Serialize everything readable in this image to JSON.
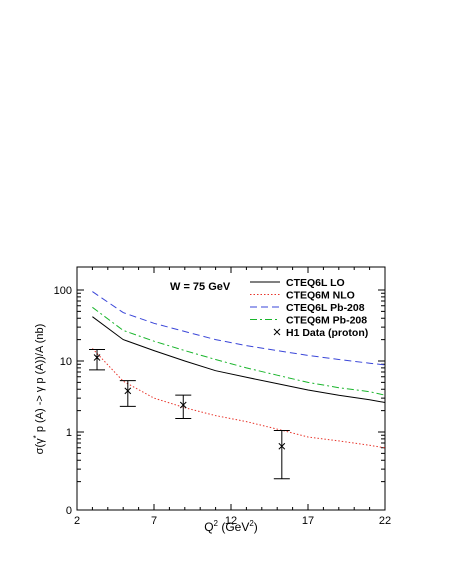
{
  "chart_data": {
    "type": "line",
    "annotation": "W = 75 GeV",
    "xlabel_main": "Q",
    "xlabel_sup": "2",
    "xlabel_unit_open": " (GeV",
    "xlabel_unit_sup": "2",
    "xlabel_unit_close": ")",
    "ylabel_prefix": "σ(γ",
    "ylabel_sup": "*",
    "ylabel_suffix": " p (A) -> γ p (A))/A (nb)",
    "xlim": [
      2,
      22
    ],
    "ylim": [
      0,
      150
    ],
    "yscale": "log",
    "x_ticks": [
      {
        "value": 2,
        "label": "2"
      },
      {
        "value": 7,
        "label": "7"
      },
      {
        "value": 12,
        "label": "12"
      },
      {
        "value": 17,
        "label": "17"
      },
      {
        "value": 22,
        "label": "22"
      }
    ],
    "y_ticks": [
      {
        "value": 0,
        "label": "0"
      },
      {
        "value": 1,
        "label": "1"
      },
      {
        "value": 10,
        "label": "10"
      },
      {
        "value": 100,
        "label": "100"
      }
    ],
    "legend_position": "top-right",
    "series": [
      {
        "name": "CTEQ6L LO",
        "color": "#000000",
        "dash": "solid",
        "x": [
          3.0,
          5.0,
          7.0,
          9.0,
          11.0,
          13.0,
          15.0,
          17.0,
          19.0,
          21.0,
          22.0
        ],
        "y": [
          42,
          20,
          14,
          10,
          7.3,
          5.9,
          4.8,
          3.9,
          3.3,
          2.85,
          2.6
        ]
      },
      {
        "name": "CTEQ6M NLO",
        "color": "#e8352b",
        "dash": "dotted",
        "x": [
          3.0,
          5.0,
          7.0,
          9.0,
          11.0,
          13.0,
          15.0,
          17.0,
          19.0,
          21.0,
          22.0
        ],
        "y": [
          15,
          5.2,
          3.0,
          2.2,
          1.7,
          1.4,
          1.1,
          0.85,
          0.75,
          0.65,
          0.6
        ]
      },
      {
        "name": "CTEQ6L Pb-208",
        "color": "#3a46d8",
        "dash": "dashed",
        "x": [
          3.0,
          5.0,
          7.0,
          9.0,
          11.0,
          13.0,
          15.0,
          17.0,
          19.0,
          21.0,
          22.0
        ],
        "y": [
          95,
          48,
          34,
          26,
          20,
          16.5,
          14,
          12,
          10.5,
          9.3,
          8.8
        ]
      },
      {
        "name": "CTEQ6M Pb-208",
        "color": "#19b52b",
        "dash": "dashdot",
        "x": [
          3.0,
          5.0,
          7.0,
          9.0,
          11.0,
          13.0,
          15.0,
          17.0,
          19.0,
          21.0,
          22.0
        ],
        "y": [
          57,
          27,
          19,
          14,
          10.5,
          8.0,
          6.3,
          5.0,
          4.2,
          3.7,
          3.3
        ]
      }
    ],
    "data_points": {
      "name": "H1 Data (proton)",
      "color": "#000000",
      "points": [
        {
          "x": 3.3,
          "y": 11.2,
          "ylow": 7.5,
          "yhigh": 14.5
        },
        {
          "x": 5.3,
          "y": 3.8,
          "ylow": 2.3,
          "yhigh": 5.3
        },
        {
          "x": 8.9,
          "y": 2.4,
          "ylow": 1.55,
          "yhigh": 3.3
        },
        {
          "x": 15.3,
          "y": 0.63,
          "ylow": 0.22,
          "yhigh": 1.05
        }
      ]
    }
  }
}
